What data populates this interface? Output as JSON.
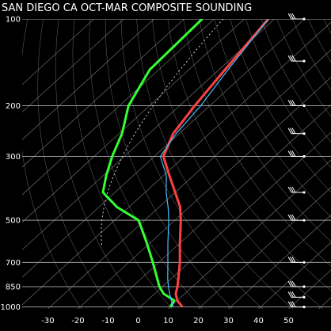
{
  "chart_data": {
    "type": "line",
    "title": "SAN DIEGO CA  OCT-MAR COMPOSITE SOUNDING",
    "pressure_levels": [
      100,
      200,
      300,
      500,
      700,
      850,
      1000
    ],
    "pressure_tick_labels": [
      "100",
      "200",
      "300",
      "500",
      "700",
      "850",
      "1000"
    ],
    "temperature_ticks": [
      -30,
      -20,
      -10,
      0,
      10,
      20,
      30,
      40,
      50
    ],
    "temperature_tick_labels": [
      "-30",
      "-20",
      "-10",
      "0",
      "10",
      "20",
      "30",
      "40",
      "50"
    ],
    "xlim": [
      -40,
      55
    ],
    "ylim": [
      1015,
      100
    ],
    "y_scale": "log",
    "skew_t": true,
    "grid": true,
    "colors": {
      "background": "#000000",
      "temperature": "#ff4040",
      "dewpoint": "#33ff33",
      "parcel": "#40c0ff",
      "grid": "#9a9a9a",
      "dashed_line": "#ffffff",
      "wind_barb": "#ffffff"
    },
    "series": [
      {
        "key": "temperature",
        "pressure": [
          1000,
          950,
          900,
          850,
          800,
          700,
          600,
          500,
          450,
          400,
          350,
          300,
          250,
          200,
          150,
          100
        ],
        "temperature": [
          14,
          10,
          7,
          5,
          2.5,
          -3,
          -10,
          -18,
          -23,
          -30,
          -38,
          -47,
          -52,
          -55,
          -58,
          -62
        ]
      },
      {
        "key": "dewpoint",
        "pressure": [
          1000,
          950,
          900,
          850,
          700,
          600,
          500,
          450,
          400,
          350,
          300,
          250,
          200,
          150,
          100
        ],
        "temperature": [
          10,
          9,
          3,
          -1,
          -12,
          -21,
          -32,
          -44,
          -54,
          -59,
          -64,
          -69,
          -77,
          -83,
          -84
        ]
      },
      {
        "key": "parcel",
        "pressure": [
          1000,
          950,
          900,
          850,
          800,
          700,
          600,
          500,
          450,
          400,
          350,
          300,
          250,
          200,
          150,
          100
        ],
        "temperature": [
          11,
          8,
          5,
          2,
          -1,
          -7,
          -14,
          -22,
          -27,
          -33,
          -39,
          -48,
          -51,
          -53,
          -57,
          -62
        ]
      }
    ]
  }
}
